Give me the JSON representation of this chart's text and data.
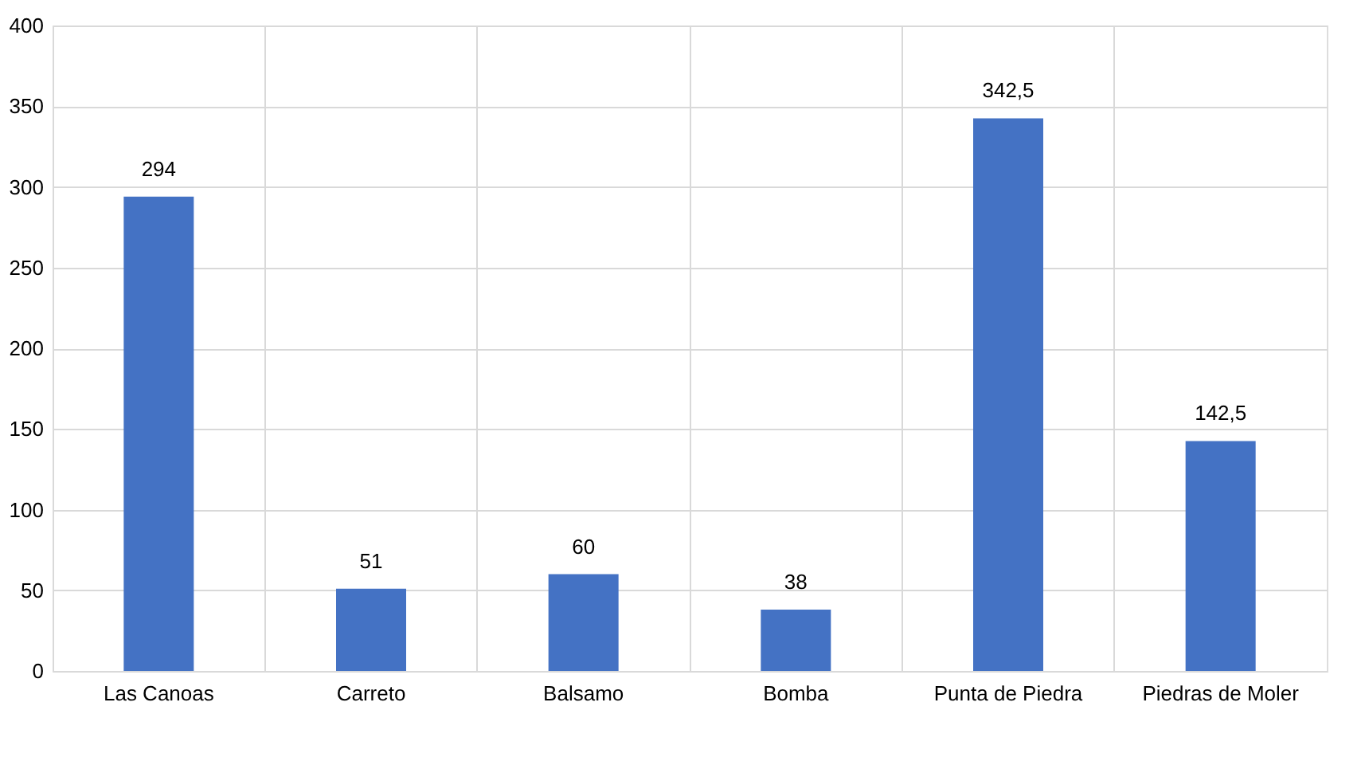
{
  "chart_data": {
    "type": "bar",
    "categories": [
      "Las Canoas",
      "Carreto",
      "Balsamo",
      "Bomba",
      "Punta de Piedra",
      "Piedras de Moler"
    ],
    "values": [
      294,
      51,
      60,
      38,
      342.5,
      142.5
    ],
    "value_labels": [
      "294",
      "51",
      "60",
      "38",
      "342,5",
      "142,5"
    ],
    "color": "#4472c4",
    "ylim": [
      0,
      400
    ],
    "yticks": [
      0,
      50,
      100,
      150,
      200,
      250,
      300,
      350,
      400
    ],
    "grid": true
  }
}
